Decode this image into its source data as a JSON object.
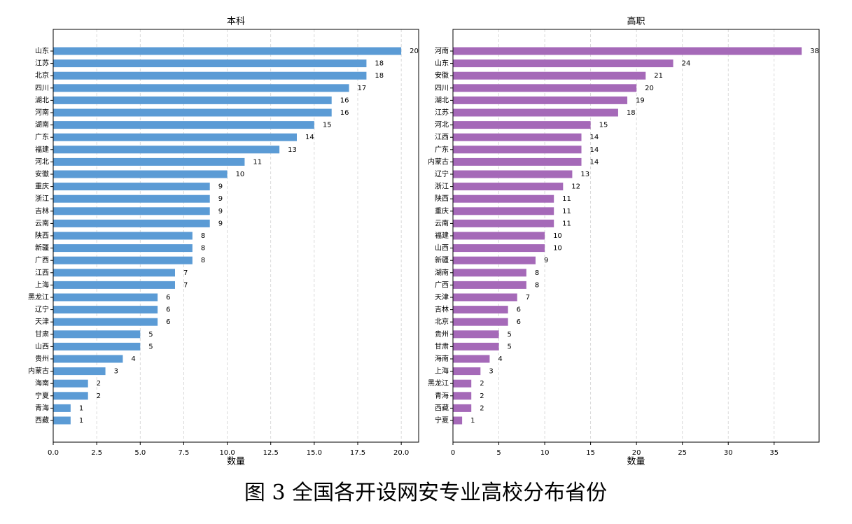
{
  "chart_data": [
    {
      "type": "bar",
      "orientation": "horizontal",
      "title": "本科",
      "x_label": "数量",
      "color": "#5b9bd5",
      "grid": true,
      "xlim": [
        0,
        21
      ],
      "xticks": [
        {
          "value": 0,
          "label": "0.0"
        },
        2.5,
        {
          "value": 5,
          "label": "5.0"
        },
        7.5,
        {
          "value": 10,
          "label": "10.0"
        },
        12.5,
        {
          "value": 15,
          "label": "15.0"
        },
        17.5,
        {
          "value": 20,
          "label": "20.0"
        }
      ],
      "categories": [
        "山东",
        "江苏",
        "北京",
        "四川",
        "湖北",
        "河南",
        "湖南",
        "广东",
        "福建",
        "河北",
        "安徽",
        "重庆",
        "浙江",
        "吉林",
        "云南",
        "陕西",
        "新疆",
        "广西",
        "江西",
        "上海",
        "黑龙江",
        "辽宁",
        "天津",
        "甘肃",
        "山西",
        "贵州",
        "内蒙古",
        "海南",
        "宁夏",
        "青海",
        "西藏"
      ],
      "values": [
        20,
        18,
        18,
        17,
        16,
        16,
        15,
        14,
        13,
        11,
        10,
        9,
        9,
        9,
        9,
        8,
        8,
        8,
        7,
        7,
        6,
        6,
        6,
        5,
        5,
        4,
        3,
        2,
        2,
        1,
        1
      ]
    },
    {
      "type": "bar",
      "orientation": "horizontal",
      "title": "高职",
      "x_label": "数量",
      "color": "#a569b8",
      "grid": true,
      "xlim": [
        0,
        39.9
      ],
      "xticks": [
        0,
        5,
        10,
        15,
        20,
        25,
        30,
        35
      ],
      "categories": [
        "河南",
        "山东",
        "安徽",
        "四川",
        "湖北",
        "江苏",
        "河北",
        "江西",
        "广东",
        "内蒙古",
        "辽宁",
        "浙江",
        "陕西",
        "重庆",
        "云南",
        "福建",
        "山西",
        "新疆",
        "湖南",
        "广西",
        "天津",
        "吉林",
        "北京",
        "贵州",
        "甘肃",
        "海南",
        "上海",
        "黑龙江",
        "青海",
        "西藏",
        "宁夏"
      ],
      "values": [
        38,
        24,
        21,
        20,
        19,
        18,
        15,
        14,
        14,
        14,
        13,
        12,
        11,
        11,
        11,
        10,
        10,
        9,
        8,
        8,
        7,
        6,
        6,
        5,
        5,
        4,
        3,
        2,
        2,
        2,
        1
      ]
    }
  ],
  "caption": "图 3 全国各开设网安专业高校分布省份"
}
